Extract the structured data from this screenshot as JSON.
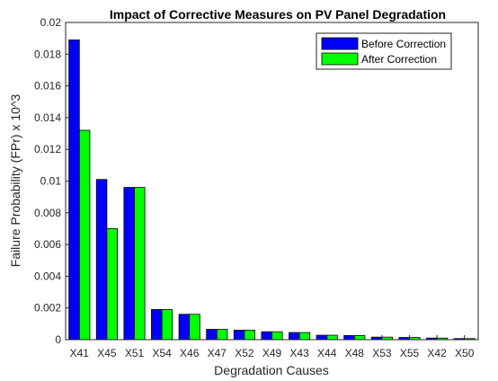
{
  "chart_data": {
    "type": "bar",
    "title": "Impact of Corrective Measures on PV Panel Degradation",
    "xlabel": "Degradation Causes",
    "ylabel": "Failure Probability (FPr) x 10^3",
    "ylim": [
      0,
      0.02
    ],
    "yticks": [
      "0",
      "0.002",
      "0.004",
      "0.006",
      "0.008",
      "0.01",
      "0.012",
      "0.014",
      "0.016",
      "0.018",
      "0.02"
    ],
    "grid": false,
    "legend_position": "top-right",
    "categories": [
      "X41",
      "X45",
      "X51",
      "X54",
      "X46",
      "X47",
      "X52",
      "X49",
      "X43",
      "X44",
      "X48",
      "X53",
      "X55",
      "X42",
      "X50"
    ],
    "series": [
      {
        "name": "Before Correction",
        "color": "#0000ff",
        "values": [
          0.0189,
          0.0101,
          0.0096,
          0.0019,
          0.0016,
          0.00065,
          0.0006,
          0.0005,
          0.00045,
          0.00028,
          0.00026,
          0.00016,
          0.00014,
          0.0001,
          7e-05
        ]
      },
      {
        "name": "After Correction",
        "color": "#00ff00",
        "values": [
          0.0132,
          0.007,
          0.0096,
          0.0019,
          0.0016,
          0.00065,
          0.0006,
          0.0005,
          0.00045,
          0.00028,
          0.00026,
          0.00016,
          0.00014,
          0.0001,
          7e-05
        ]
      }
    ]
  }
}
